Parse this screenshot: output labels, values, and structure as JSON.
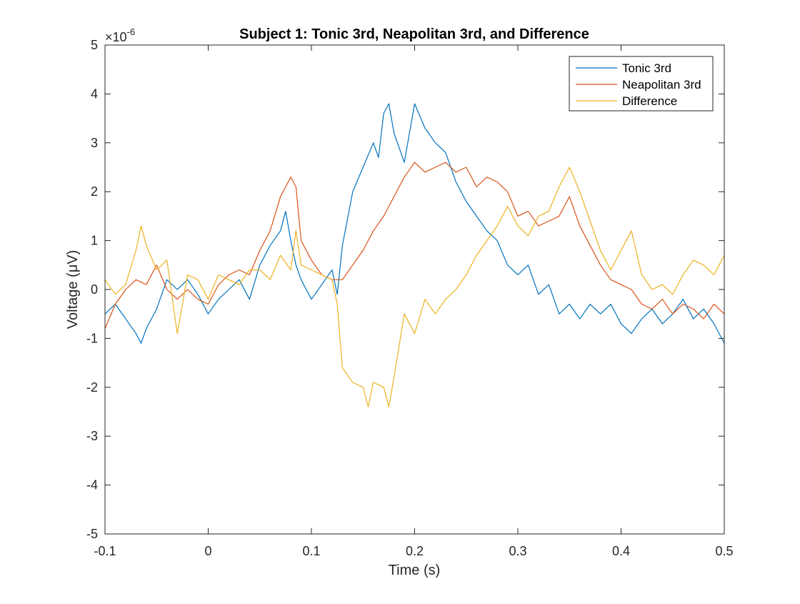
{
  "chart_data": {
    "type": "line",
    "title": "Subject 1: Tonic 3rd, Neapolitan 3rd, and Difference",
    "xlabel": "Time (s)",
    "ylabel": "Voltage (μV)",
    "exponent_label": "×10",
    "exponent_power": "-6",
    "xlim": [
      -0.1,
      0.5
    ],
    "ylim": [
      -5,
      5
    ],
    "x_ticks": [
      -0.1,
      0,
      0.1,
      0.2,
      0.3,
      0.4,
      0.5
    ],
    "x_tick_labels": [
      "-0.1",
      "0",
      "0.1",
      "0.2",
      "0.3",
      "0.4",
      "0.5"
    ],
    "y_ticks": [
      -5,
      -4,
      -3,
      -2,
      -1,
      0,
      1,
      2,
      3,
      4,
      5
    ],
    "y_tick_labels": [
      "-5",
      "-4",
      "-3",
      "-2",
      "-1",
      "0",
      "1",
      "2",
      "3",
      "4",
      "5"
    ],
    "grid": false,
    "legend_position": "top-right",
    "series": [
      {
        "name": "Tonic 3rd",
        "color": "#0072BD",
        "points": [
          [
            -0.1,
            -0.5
          ],
          [
            -0.09,
            -0.3
          ],
          [
            -0.08,
            -0.6
          ],
          [
            -0.07,
            -0.9
          ],
          [
            -0.065,
            -1.1
          ],
          [
            -0.06,
            -0.8
          ],
          [
            -0.05,
            -0.4
          ],
          [
            -0.04,
            0.2
          ],
          [
            -0.03,
            0.0
          ],
          [
            -0.02,
            0.2
          ],
          [
            -0.01,
            -0.1
          ],
          [
            0.0,
            -0.5
          ],
          [
            0.01,
            -0.2
          ],
          [
            0.02,
            0.0
          ],
          [
            0.03,
            0.2
          ],
          [
            0.04,
            -0.2
          ],
          [
            0.05,
            0.5
          ],
          [
            0.06,
            0.9
          ],
          [
            0.07,
            1.2
          ],
          [
            0.075,
            1.6
          ],
          [
            0.08,
            1.0
          ],
          [
            0.085,
            0.5
          ],
          [
            0.09,
            0.2
          ],
          [
            0.1,
            -0.2
          ],
          [
            0.11,
            0.1
          ],
          [
            0.12,
            0.4
          ],
          [
            0.125,
            -0.1
          ],
          [
            0.13,
            0.9
          ],
          [
            0.14,
            2.0
          ],
          [
            0.15,
            2.5
          ],
          [
            0.16,
            3.0
          ],
          [
            0.165,
            2.7
          ],
          [
            0.17,
            3.6
          ],
          [
            0.175,
            3.8
          ],
          [
            0.18,
            3.2
          ],
          [
            0.19,
            2.6
          ],
          [
            0.2,
            3.8
          ],
          [
            0.21,
            3.3
          ],
          [
            0.22,
            3.0
          ],
          [
            0.23,
            2.8
          ],
          [
            0.24,
            2.2
          ],
          [
            0.25,
            1.8
          ],
          [
            0.26,
            1.5
          ],
          [
            0.27,
            1.2
          ],
          [
            0.28,
            1.0
          ],
          [
            0.29,
            0.5
          ],
          [
            0.3,
            0.3
          ],
          [
            0.31,
            0.5
          ],
          [
            0.32,
            -0.1
          ],
          [
            0.33,
            0.1
          ],
          [
            0.34,
            -0.5
          ],
          [
            0.35,
            -0.3
          ],
          [
            0.36,
            -0.6
          ],
          [
            0.37,
            -0.3
          ],
          [
            0.38,
            -0.5
          ],
          [
            0.39,
            -0.3
          ],
          [
            0.4,
            -0.7
          ],
          [
            0.41,
            -0.9
          ],
          [
            0.42,
            -0.6
          ],
          [
            0.43,
            -0.4
          ],
          [
            0.44,
            -0.7
          ],
          [
            0.45,
            -0.5
          ],
          [
            0.46,
            -0.2
          ],
          [
            0.47,
            -0.6
          ],
          [
            0.48,
            -0.4
          ],
          [
            0.49,
            -0.7
          ],
          [
            0.5,
            -1.1
          ]
        ]
      },
      {
        "name": "Neapolitan 3rd",
        "color": "#D95319",
        "points": [
          [
            -0.1,
            -0.8
          ],
          [
            -0.09,
            -0.3
          ],
          [
            -0.08,
            0.0
          ],
          [
            -0.07,
            0.2
          ],
          [
            -0.06,
            0.1
          ],
          [
            -0.05,
            0.5
          ],
          [
            -0.04,
            0.0
          ],
          [
            -0.03,
            -0.2
          ],
          [
            -0.02,
            0.0
          ],
          [
            -0.01,
            -0.2
          ],
          [
            0.0,
            -0.3
          ],
          [
            0.01,
            0.1
          ],
          [
            0.02,
            0.3
          ],
          [
            0.03,
            0.4
          ],
          [
            0.04,
            0.3
          ],
          [
            0.05,
            0.8
          ],
          [
            0.06,
            1.2
          ],
          [
            0.07,
            1.9
          ],
          [
            0.075,
            2.1
          ],
          [
            0.08,
            2.3
          ],
          [
            0.085,
            2.1
          ],
          [
            0.09,
            1.0
          ],
          [
            0.1,
            0.6
          ],
          [
            0.11,
            0.3
          ],
          [
            0.12,
            0.2
          ],
          [
            0.13,
            0.2
          ],
          [
            0.14,
            0.5
          ],
          [
            0.15,
            0.8
          ],
          [
            0.16,
            1.2
          ],
          [
            0.17,
            1.5
          ],
          [
            0.18,
            1.9
          ],
          [
            0.19,
            2.3
          ],
          [
            0.2,
            2.6
          ],
          [
            0.21,
            2.4
          ],
          [
            0.22,
            2.5
          ],
          [
            0.23,
            2.6
          ],
          [
            0.24,
            2.4
          ],
          [
            0.25,
            2.5
          ],
          [
            0.26,
            2.1
          ],
          [
            0.27,
            2.3
          ],
          [
            0.28,
            2.2
          ],
          [
            0.29,
            2.0
          ],
          [
            0.3,
            1.5
          ],
          [
            0.31,
            1.6
          ],
          [
            0.32,
            1.3
          ],
          [
            0.33,
            1.4
          ],
          [
            0.34,
            1.5
          ],
          [
            0.35,
            1.9
          ],
          [
            0.36,
            1.3
          ],
          [
            0.37,
            0.9
          ],
          [
            0.38,
            0.5
          ],
          [
            0.39,
            0.2
          ],
          [
            0.4,
            0.1
          ],
          [
            0.41,
            0.0
          ],
          [
            0.42,
            -0.3
          ],
          [
            0.43,
            -0.4
          ],
          [
            0.44,
            -0.2
          ],
          [
            0.45,
            -0.5
          ],
          [
            0.46,
            -0.3
          ],
          [
            0.47,
            -0.4
          ],
          [
            0.48,
            -0.6
          ],
          [
            0.49,
            -0.3
          ],
          [
            0.5,
            -0.5
          ]
        ]
      },
      {
        "name": "Difference",
        "color": "#EDB120",
        "points": [
          [
            -0.1,
            0.2
          ],
          [
            -0.09,
            -0.1
          ],
          [
            -0.08,
            0.1
          ],
          [
            -0.07,
            0.8
          ],
          [
            -0.065,
            1.3
          ],
          [
            -0.06,
            0.9
          ],
          [
            -0.05,
            0.4
          ],
          [
            -0.04,
            0.6
          ],
          [
            -0.03,
            -0.9
          ],
          [
            -0.02,
            0.3
          ],
          [
            -0.01,
            0.2
          ],
          [
            0.0,
            -0.2
          ],
          [
            0.01,
            0.3
          ],
          [
            0.02,
            0.2
          ],
          [
            0.03,
            0.1
          ],
          [
            0.04,
            0.4
          ],
          [
            0.05,
            0.4
          ],
          [
            0.06,
            0.2
          ],
          [
            0.07,
            0.7
          ],
          [
            0.08,
            0.4
          ],
          [
            0.085,
            1.2
          ],
          [
            0.09,
            0.5
          ],
          [
            0.1,
            0.4
          ],
          [
            0.11,
            0.3
          ],
          [
            0.12,
            0.2
          ],
          [
            0.125,
            -0.3
          ],
          [
            0.13,
            -1.6
          ],
          [
            0.14,
            -1.9
          ],
          [
            0.15,
            -2.0
          ],
          [
            0.155,
            -2.4
          ],
          [
            0.16,
            -1.9
          ],
          [
            0.17,
            -2.0
          ],
          [
            0.175,
            -2.4
          ],
          [
            0.18,
            -1.8
          ],
          [
            0.19,
            -0.5
          ],
          [
            0.2,
            -0.9
          ],
          [
            0.21,
            -0.2
          ],
          [
            0.22,
            -0.5
          ],
          [
            0.23,
            -0.2
          ],
          [
            0.24,
            0.0
          ],
          [
            0.25,
            0.3
          ],
          [
            0.26,
            0.7
          ],
          [
            0.27,
            1.0
          ],
          [
            0.28,
            1.3
          ],
          [
            0.29,
            1.7
          ],
          [
            0.3,
            1.3
          ],
          [
            0.31,
            1.1
          ],
          [
            0.32,
            1.5
          ],
          [
            0.33,
            1.6
          ],
          [
            0.34,
            2.1
          ],
          [
            0.35,
            2.5
          ],
          [
            0.36,
            2.0
          ],
          [
            0.37,
            1.4
          ],
          [
            0.38,
            0.8
          ],
          [
            0.39,
            0.4
          ],
          [
            0.4,
            0.8
          ],
          [
            0.41,
            1.2
          ],
          [
            0.42,
            0.3
          ],
          [
            0.43,
            0.0
          ],
          [
            0.44,
            0.1
          ],
          [
            0.45,
            -0.1
          ],
          [
            0.46,
            0.3
          ],
          [
            0.47,
            0.6
          ],
          [
            0.48,
            0.5
          ],
          [
            0.49,
            0.3
          ],
          [
            0.5,
            0.7
          ]
        ]
      }
    ]
  }
}
